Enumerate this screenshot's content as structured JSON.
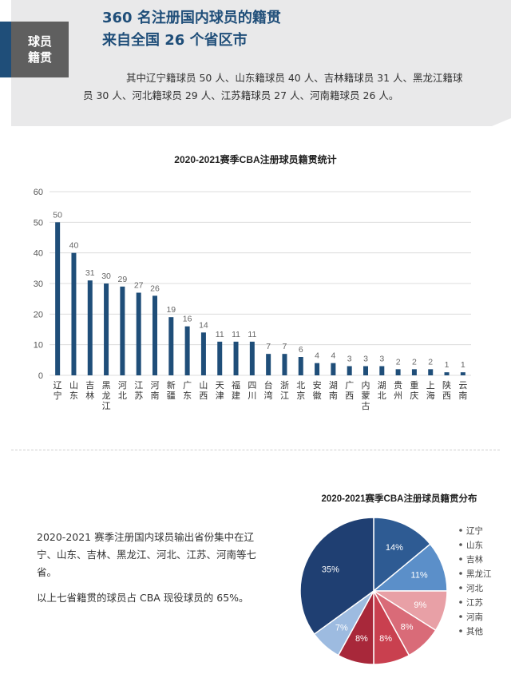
{
  "header": {
    "badge_line1": "球员",
    "badge_line2": "籍贯",
    "title_line1": "360 名注册国内球员的籍贯",
    "title_line2": "来自全国 26 个省区市",
    "description": "其中辽宁籍球员 50 人、山东籍球员 40 人、吉林籍球员 31 人、黑龙江籍球员 30 人、河北籍球员 29 人、江苏籍球员 27 人、河南籍球员 26 人。"
  },
  "colors": {
    "accent": "#1f4e79",
    "bar": "#1f4e79",
    "badge": "#5f5f5f",
    "header_bg": "#e9e9ea"
  },
  "body_text": {
    "paragraph1": "2020-2021 赛季注册国内球员输出省份集中在辽宁、山东、吉林、黑龙江、河北、江苏、河南等七省。",
    "paragraph2": "以上七省籍贯的球员占 CBA 现役球员的 65%。"
  },
  "chart_data": [
    {
      "type": "bar",
      "title": "2020-2021赛季CBA注册球员籍贯统计",
      "categories": [
        "辽宁",
        "山东",
        "吉林",
        "黑龙江",
        "河北",
        "江苏",
        "河南",
        "新疆",
        "广东",
        "山西",
        "天津",
        "福建",
        "四川",
        "台湾",
        "浙江",
        "北京",
        "安徽",
        "湖南",
        "广西",
        "内蒙古",
        "湖北",
        "贵州",
        "重庆",
        "上海",
        "陕西",
        "云南"
      ],
      "values": [
        50,
        40,
        31,
        30,
        29,
        27,
        26,
        19,
        16,
        14,
        11,
        11,
        11,
        7,
        7,
        6,
        4,
        4,
        3,
        3,
        3,
        2,
        2,
        2,
        1,
        1
      ],
      "ylim": [
        0,
        60
      ],
      "yticks": [
        "0",
        "10",
        "20",
        "30",
        "40",
        "50",
        "60"
      ],
      "grid": true
    },
    {
      "type": "pie",
      "title": "2020-2021赛季CBA注册球员籍贯分布",
      "labels": [
        "辽宁",
        "山东",
        "吉林",
        "黑龙江",
        "河北",
        "江苏",
        "河南",
        "其他"
      ],
      "values": [
        14,
        11,
        9,
        8,
        8,
        8,
        7,
        35
      ],
      "value_labels": [
        "14%",
        "11%",
        "9%",
        "8%",
        "8%",
        "8%",
        "7%",
        "35%"
      ],
      "colors": [
        "#2e5b93",
        "#5b8fc9",
        "#e8a0a6",
        "#d96b78",
        "#c9404f",
        "#a8283a",
        "#9dbbe0",
        "#1f3f72"
      ],
      "legend_position": "right"
    }
  ]
}
